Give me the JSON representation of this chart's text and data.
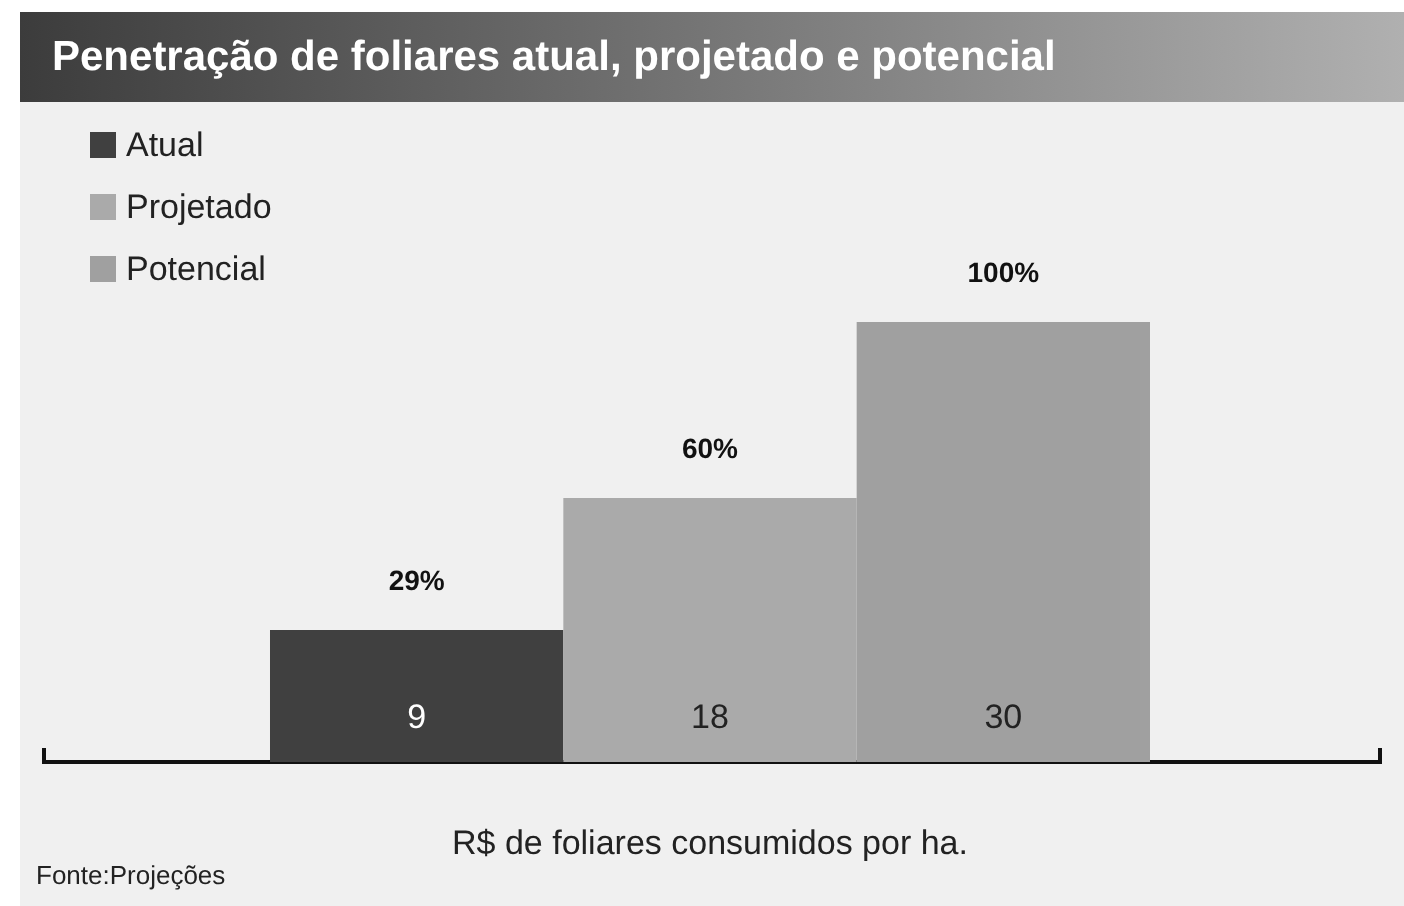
{
  "chart_data": {
    "type": "bar",
    "title": "Penetração de foliares atual, projetado e potencial",
    "categories": [
      null,
      null,
      null
    ],
    "xlabel": "R$ de foliares consumidos por ha.",
    "series": [
      {
        "name": "Atual",
        "color": "#404040",
        "values": [
          9,
          null,
          null
        ]
      },
      {
        "name": "Projetado",
        "color": "#aaaaaa",
        "values": [
          null,
          18,
          null
        ]
      },
      {
        "name": "Potencial",
        "color": "#a0a0a0",
        "values": [
          null,
          null,
          30
        ]
      }
    ],
    "data_labels": true,
    "stacked": true,
    "legend": "top left",
    "annotations": [
      "29%",
      "60%",
      "100%",
      "Fonte:Projeções"
    ]
  }
}
